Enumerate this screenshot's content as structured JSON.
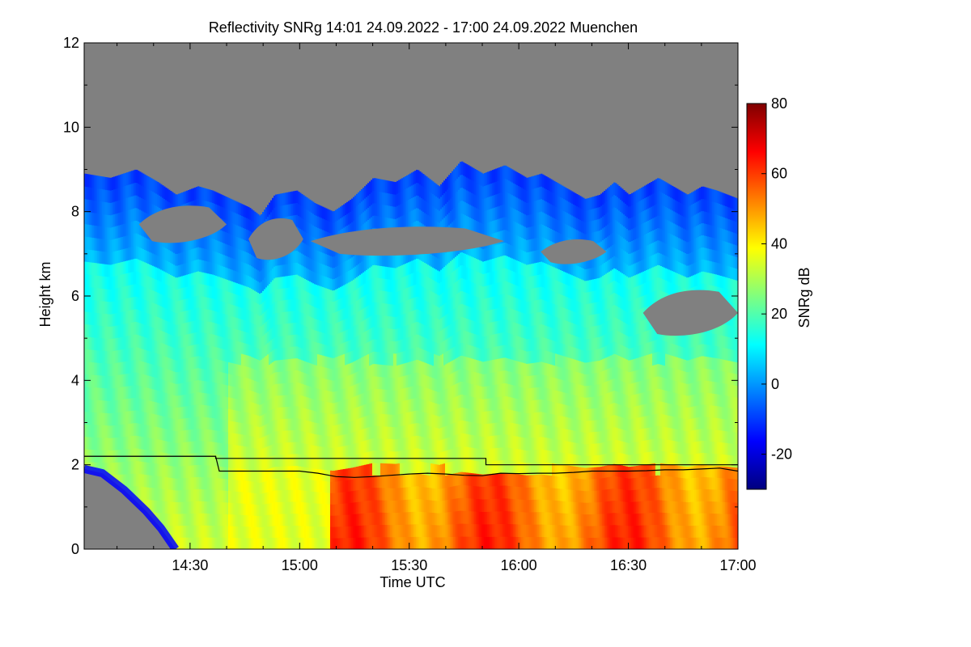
{
  "chart_data": {
    "type": "heatmap",
    "title": "Reflectivity SNRg   14:01 24.09.2022 - 17:00 24.09.2022 Muenchen",
    "xlabel": "Time UTC",
    "ylabel": "Height km",
    "xlim_minutes_utc": [
      841,
      1020
    ],
    "ylim": [
      0,
      12
    ],
    "xticks": [
      {
        "minutes": 870,
        "label": "14:30"
      },
      {
        "minutes": 900,
        "label": "15:00"
      },
      {
        "minutes": 930,
        "label": "15:30"
      },
      {
        "minutes": 960,
        "label": "16:00"
      },
      {
        "minutes": 990,
        "label": "16:30"
      },
      {
        "minutes": 1020,
        "label": "17:00"
      }
    ],
    "yticks": [
      {
        "value": 0,
        "label": "0"
      },
      {
        "value": 2,
        "label": "2"
      },
      {
        "value": 4,
        "label": "4"
      },
      {
        "value": 6,
        "label": "6"
      },
      {
        "value": 8,
        "label": "8"
      },
      {
        "value": 10,
        "label": "10"
      },
      {
        "value": 12,
        "label": "12"
      }
    ],
    "no_signal_color": "#808080",
    "colorbar": {
      "label": "SNRg dB",
      "range": [
        -30,
        80
      ],
      "ticks": [
        {
          "value": 80,
          "label": "80"
        },
        {
          "value": 60,
          "label": "60"
        },
        {
          "value": 40,
          "label": "40"
        },
        {
          "value": 20,
          "label": "20"
        },
        {
          "value": 0,
          "label": "0"
        },
        {
          "value": -20,
          "label": "-20"
        }
      ],
      "colors": [
        "#00007f",
        "#0000ff",
        "#007fff",
        "#00ffff",
        "#7fff7f",
        "#ffff00",
        "#ff7f00",
        "#ff0000",
        "#7f0000"
      ]
    },
    "signal_top_km": {
      "minutes": [
        841,
        848,
        855,
        861,
        866,
        872,
        876,
        881,
        886,
        889,
        893,
        899,
        904,
        909,
        914,
        920,
        926,
        932,
        938,
        944,
        950,
        956,
        962,
        966,
        970,
        974,
        978,
        982,
        986,
        990,
        994,
        998,
        1002,
        1006,
        1010,
        1014,
        1020
      ],
      "values": [
        8.9,
        8.8,
        9.0,
        8.7,
        8.4,
        8.6,
        8.5,
        8.3,
        8.1,
        7.9,
        8.4,
        8.5,
        8.2,
        8.0,
        8.3,
        8.8,
        8.7,
        9.0,
        8.6,
        9.2,
        8.9,
        9.1,
        8.8,
        8.9,
        8.7,
        8.5,
        8.3,
        8.4,
        8.7,
        8.4,
        8.6,
        8.8,
        8.6,
        8.4,
        8.6,
        8.5,
        8.3
      ]
    },
    "gap_regions_km": [
      {
        "from_minute": 856,
        "to_minute": 880,
        "bottom": 7.3,
        "top": 8.1
      },
      {
        "from_minute": 886,
        "to_minute": 901,
        "bottom": 6.9,
        "top": 7.8
      },
      {
        "from_minute": 903,
        "to_minute": 956,
        "bottom": 7.0,
        "top": 7.6
      },
      {
        "from_minute": 966,
        "to_minute": 984,
        "bottom": 6.8,
        "top": 7.3
      },
      {
        "from_minute": 994,
        "to_minute": 1020,
        "bottom": 5.1,
        "top": 6.1
      }
    ],
    "low_clear_region_km": {
      "minutes": [
        841,
        846,
        852,
        858,
        862,
        866
      ],
      "top": [
        1.9,
        1.8,
        1.4,
        0.9,
        0.5,
        0.0
      ]
    },
    "layer_lines_km": [
      {
        "name": "upper black line",
        "minutes": [
          841,
          877,
          877,
          951,
          951,
          1020
        ],
        "values": [
          2.2,
          2.2,
          2.15,
          2.15,
          2.0,
          2.0
        ]
      },
      {
        "name": "lower black line",
        "minutes": [
          841,
          877,
          878,
          885,
          890,
          895,
          900,
          905,
          910,
          915,
          920,
          925,
          930,
          935,
          940,
          945,
          950,
          955,
          960,
          965,
          970,
          975,
          980,
          985,
          990,
          995,
          1000,
          1005,
          1010,
          1015,
          1020
        ],
        "values": [
          2.2,
          2.2,
          1.85,
          1.85,
          1.85,
          1.85,
          1.85,
          1.8,
          1.72,
          1.7,
          1.72,
          1.75,
          1.78,
          1.8,
          1.78,
          1.75,
          1.74,
          1.8,
          1.79,
          1.8,
          1.8,
          1.82,
          1.85,
          1.85,
          1.85,
          1.86,
          1.88,
          1.88,
          1.9,
          1.92,
          1.85
        ]
      }
    ],
    "snr_field": {
      "description_zones": [
        {
          "name": "drizzle/virga cloud",
          "from_minute": 841,
          "to_minute": 1020,
          "km_range": [
            0,
            9
          ],
          "typical_dB": 20
        },
        {
          "name": "rain below melting layer",
          "from_minute": 908,
          "to_minute": 1020,
          "km_range": [
            0,
            1.9
          ],
          "typical_dB": 62
        }
      ]
    }
  }
}
